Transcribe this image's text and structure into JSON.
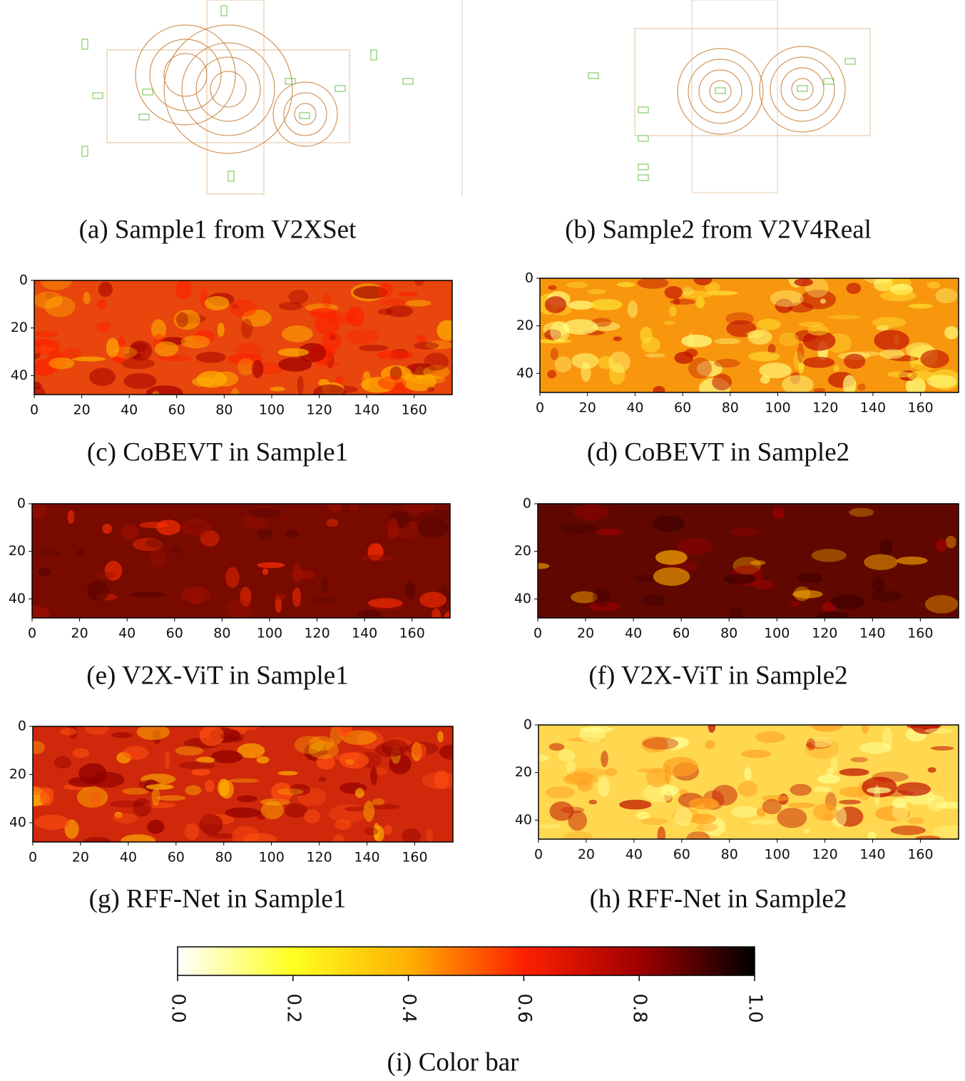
{
  "panels": [
    {
      "caption": "(a) Sample1 from V2XSet"
    },
    {
      "caption": "(b) Sample2 from V2V4Real"
    },
    {
      "caption": "(c) CoBEVT in Sample1",
      "xlim": [
        0,
        176
      ],
      "ylim": [
        0,
        48
      ],
      "xticks": [
        0,
        20,
        40,
        60,
        80,
        100,
        120,
        140,
        160
      ],
      "yticks": [
        0,
        20,
        40
      ]
    },
    {
      "caption": "(d) CoBEVT in Sample2",
      "xlim": [
        0,
        176
      ],
      "ylim": [
        0,
        48
      ],
      "xticks": [
        0,
        20,
        40,
        60,
        80,
        100,
        120,
        140,
        160
      ],
      "yticks": [
        0,
        20,
        40
      ]
    },
    {
      "caption": "(e) V2X-ViT in Sample1",
      "xlim": [
        0,
        176
      ],
      "ylim": [
        0,
        48
      ],
      "xticks": [
        0,
        20,
        40,
        60,
        80,
        100,
        120,
        140,
        160
      ],
      "yticks": [
        0,
        20,
        40
      ]
    },
    {
      "caption": "(f) V2X-ViT in Sample2",
      "xlim": [
        0,
        176
      ],
      "ylim": [
        0,
        48
      ],
      "xticks": [
        0,
        20,
        40,
        60,
        80,
        100,
        120,
        140,
        160
      ],
      "yticks": [
        0,
        20,
        40
      ]
    },
    {
      "caption": "(g) RFF-Net in Sample1",
      "xlim": [
        0,
        176
      ],
      "ylim": [
        0,
        48
      ],
      "xticks": [
        0,
        20,
        40,
        60,
        80,
        100,
        120,
        140,
        160
      ],
      "yticks": [
        0,
        20,
        40
      ]
    },
    {
      "caption": "(h) RFF-Net in Sample2",
      "xlim": [
        0,
        176
      ],
      "ylim": [
        0,
        48
      ],
      "xticks": [
        0,
        20,
        40,
        60,
        80,
        100,
        120,
        140,
        160
      ],
      "yticks": [
        0,
        20,
        40
      ]
    }
  ],
  "colorbar": {
    "caption": "(i) Color bar",
    "lim": [
      0,
      1
    ],
    "ticks": [
      {
        "value": 0,
        "label": "0.0"
      },
      {
        "value": 0.2,
        "label": "0.2"
      },
      {
        "value": 0.4,
        "label": "0.4"
      },
      {
        "value": 0.6,
        "label": "0.6"
      },
      {
        "value": 0.8,
        "label": "0.8"
      },
      {
        "value": 1,
        "label": "1.0"
      }
    ]
  }
}
